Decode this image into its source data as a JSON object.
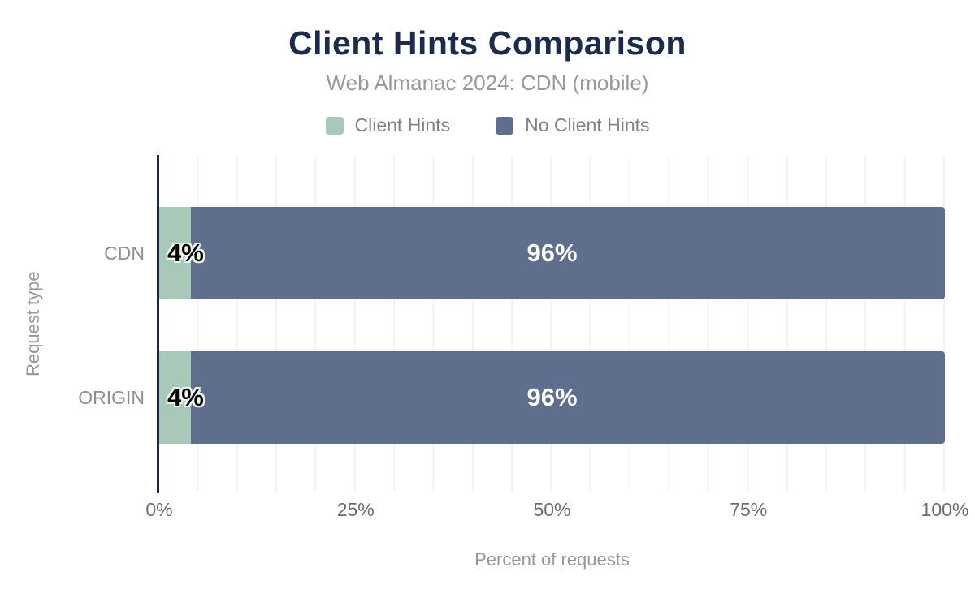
{
  "header": {
    "title": "Client Hints Comparison",
    "subtitle": "Web Almanac 2024: CDN (mobile)"
  },
  "chart_data": {
    "type": "bar",
    "orientation": "horizontal",
    "stacked": true,
    "title": "Client Hints Comparison",
    "subtitle": "Web Almanac 2024: CDN (mobile)",
    "categories": [
      "CDN",
      "ORIGIN"
    ],
    "series": [
      {
        "name": "Client Hints",
        "color": "#a9c9b8",
        "values": [
          4,
          4
        ],
        "labels": [
          "4%",
          "4%"
        ]
      },
      {
        "name": "No Client Hints",
        "color": "#5f6e8c",
        "values": [
          96,
          96
        ],
        "labels": [
          "96%",
          "96%"
        ]
      }
    ],
    "xlabel": "Percent of requests",
    "ylabel": "Request type",
    "xlim": [
      0,
      100
    ],
    "xticks": [
      "0%",
      "25%",
      "50%",
      "75%",
      "100%"
    ],
    "grid": {
      "vertical_lines_every_percent": 5,
      "horizontal": false
    },
    "legend_position": "top"
  },
  "colors": {
    "title": "#1c2b4d",
    "axis_line": "#1c2742",
    "gridline": "#f1f2f3",
    "label_on_dark": "#ffffff",
    "label_on_light": "#000000"
  }
}
